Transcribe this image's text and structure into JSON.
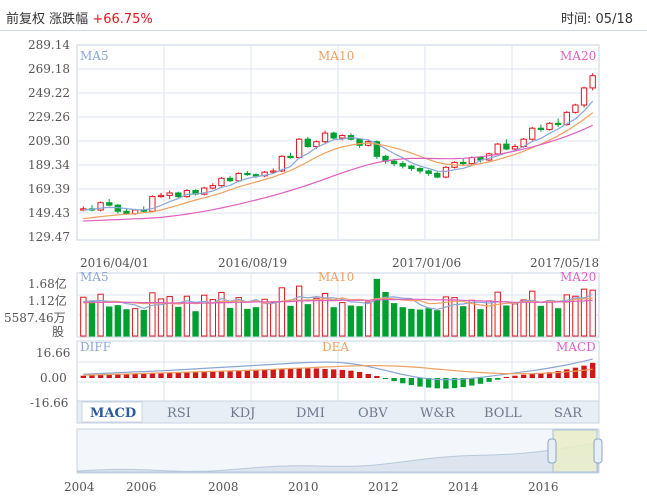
{
  "header": {
    "adjust_label": "前复权",
    "change_label": "涨跌幅",
    "change_value": "+66.75%",
    "time_label": "时间:",
    "time_value": "05/18"
  },
  "colors": {
    "up": "#e0171e",
    "down": "#00a030",
    "ma5": "#8aa6d6",
    "ma10": "#f0a060",
    "ma20": "#e060c0",
    "grid": "#dde6f0",
    "axis_text": "#555555"
  },
  "price_panel": {
    "ma_labels": [
      "MA5",
      "MA10",
      "MA20"
    ],
    "y_ticks": [
      "289.14",
      "269.18",
      "249.22",
      "229.26",
      "209.30",
      "189.34",
      "169.39",
      "149.43",
      "129.47"
    ],
    "x_labels": [
      "2016/04/01",
      "2016/08/19",
      "2017/01/06",
      "2017/05/18"
    ]
  },
  "volume_panel": {
    "ma_labels": [
      "MA5",
      "MA10",
      "MA20"
    ],
    "y_ticks": [
      "1.68亿",
      "1.12亿",
      "5587.46万",
      "股"
    ]
  },
  "macd_panel": {
    "labels": [
      "DIFF",
      "DEA",
      "MACD"
    ],
    "y_ticks": [
      "16.66",
      "0.00",
      "-16.66"
    ]
  },
  "tabs": [
    "MACD",
    "RSI",
    "KDJ",
    "DMI",
    "OBV",
    "W&R",
    "BOLL",
    "SAR"
  ],
  "active_tab": "MACD",
  "overview": {
    "years": [
      "2004",
      "2006",
      "2008",
      "2010",
      "2012",
      "2014",
      "2016"
    ]
  },
  "chart_data": [
    {
      "type": "candlestick",
      "ylim": [
        129.47,
        289.14
      ],
      "y_ticks": [
        289.14,
        269.18,
        249.22,
        229.26,
        209.3,
        189.34,
        169.39,
        149.43,
        129.47
      ],
      "x_labels": [
        "2016/04/01",
        "2016/08/19",
        "2017/01/06",
        "2017/05/18"
      ],
      "ohlc": [
        [
          154,
          157,
          153,
          155
        ],
        [
          155,
          158,
          153,
          154
        ],
        [
          154,
          161,
          153,
          160
        ],
        [
          160,
          163,
          157,
          158
        ],
        [
          158,
          159,
          151,
          153
        ],
        [
          153,
          155,
          150,
          151
        ],
        [
          151,
          155,
          150,
          154
        ],
        [
          154,
          157,
          152,
          153
        ],
        [
          153,
          166,
          152,
          165
        ],
        [
          165,
          168,
          164,
          166
        ],
        [
          166,
          170,
          163,
          168
        ],
        [
          168,
          169,
          164,
          165
        ],
        [
          165,
          171,
          164,
          170
        ],
        [
          170,
          171,
          166,
          167
        ],
        [
          167,
          173,
          166,
          172
        ],
        [
          172,
          176,
          171,
          174
        ],
        [
          174,
          181,
          173,
          180
        ],
        [
          180,
          182,
          177,
          178
        ],
        [
          178,
          185,
          177,
          184
        ],
        [
          184,
          186,
          182,
          183
        ],
        [
          183,
          184,
          180,
          182
        ],
        [
          182,
          186,
          181,
          185
        ],
        [
          185,
          188,
          184,
          186
        ],
        [
          186,
          199,
          185,
          198
        ],
        [
          198,
          201,
          196,
          197
        ],
        [
          197,
          213,
          196,
          212
        ],
        [
          212,
          214,
          205,
          206
        ],
        [
          206,
          211,
          204,
          210
        ],
        [
          210,
          219,
          209,
          217
        ],
        [
          217,
          218,
          212,
          213
        ],
        [
          213,
          216,
          211,
          215
        ],
        [
          215,
          217,
          211,
          212
        ],
        [
          212,
          213,
          205,
          207
        ],
        [
          207,
          212,
          206,
          210
        ],
        [
          210,
          211,
          196,
          198
        ],
        [
          198,
          199,
          192,
          194
        ],
        [
          194,
          196,
          190,
          192
        ],
        [
          192,
          194,
          188,
          190
        ],
        [
          190,
          191,
          186,
          188
        ],
        [
          188,
          189,
          184,
          186
        ],
        [
          186,
          187,
          182,
          184
        ],
        [
          184,
          186,
          180,
          181
        ],
        [
          181,
          190,
          180,
          189
        ],
        [
          189,
          194,
          188,
          193
        ],
        [
          193,
          196,
          190,
          192
        ],
        [
          192,
          198,
          191,
          197
        ],
        [
          197,
          198,
          193,
          195
        ],
        [
          195,
          201,
          194,
          200
        ],
        [
          200,
          209,
          199,
          208
        ],
        [
          208,
          212,
          203,
          204
        ],
        [
          204,
          208,
          202,
          206
        ],
        [
          206,
          213,
          205,
          212
        ],
        [
          212,
          222,
          211,
          221
        ],
        [
          221,
          224,
          218,
          220
        ],
        [
          220,
          226,
          219,
          225
        ],
        [
          225,
          229,
          222,
          224
        ],
        [
          224,
          235,
          223,
          234
        ],
        [
          234,
          241,
          233,
          240
        ],
        [
          240,
          255,
          238,
          254
        ],
        [
          254,
          266,
          252,
          264
        ]
      ],
      "ma5": [
        154,
        154.6,
        155.6,
        156.2,
        156,
        155.2,
        154.4,
        154.2,
        155.2,
        157.8,
        160.8,
        163.4,
        166.8,
        167.2,
        168,
        169.6,
        172.6,
        174.2,
        177.6,
        179.8,
        181.4,
        182.4,
        184,
        187,
        189.6,
        196.8,
        200.2,
        205.2,
        208.4,
        211.6,
        212.2,
        213.4,
        212.4,
        211.4,
        208.4,
        204.2,
        200.2,
        196.8,
        192.8,
        190,
        188,
        185.8,
        185.6,
        187,
        188.2,
        190.4,
        194.8,
        196.4,
        198.4,
        200.8,
        202.6,
        206,
        210.2,
        212.6,
        216.8,
        220.4,
        224.6,
        228.6,
        235.2,
        243.2
      ],
      "ma10": [
        147,
        147.8,
        148.6,
        149.4,
        150,
        150.6,
        151,
        151.8,
        152.6,
        154,
        156,
        158,
        160.2,
        162.2,
        164,
        166,
        168,
        170.6,
        173,
        175,
        177,
        179,
        181,
        183.6,
        186.4,
        189.8,
        193.4,
        197.4,
        200.8,
        203.6,
        205.8,
        207.2,
        208.4,
        208.8,
        208,
        206.8,
        205,
        203,
        200.6,
        198,
        195.4,
        193,
        191.6,
        191,
        190.6,
        190.8,
        192,
        193.4,
        195.2,
        197.4,
        199.6,
        202.2,
        205,
        208,
        211.2,
        214.8,
        219,
        223.4,
        228.2,
        233.8
      ],
      "ma20": [
        145,
        145.3,
        145.6,
        145.9,
        146.2,
        146.5,
        146.8,
        147.1,
        147.5,
        148,
        148.8,
        149.7,
        150.7,
        151.8,
        153,
        154.3,
        155.7,
        157.2,
        158.8,
        160.5,
        162.2,
        164,
        165.9,
        167.9,
        170,
        172.2,
        174.5,
        176.9,
        179.4,
        182,
        184.5,
        186.9,
        189.1,
        191.1,
        192.8,
        194.2,
        195.2,
        195.9,
        196.3,
        196.4,
        196.3,
        196.1,
        196,
        196.1,
        196.4,
        196.9,
        197.6,
        198.5,
        199.6,
        200.9,
        202.3,
        203.9,
        205.7,
        207.6,
        209.7,
        212,
        214.5,
        217.2,
        220.2,
        223.5
      ]
    },
    {
      "type": "bar",
      "y_ticks": [
        "1.68亿",
        "1.12亿",
        "5587.46万"
      ],
      "volume_wan": [
        11500,
        10200,
        12400,
        8600,
        9000,
        7800,
        8100,
        7600,
        12800,
        11000,
        11700,
        8500,
        11800,
        7200,
        12100,
        10800,
        12900,
        8200,
        11400,
        7900,
        8400,
        10900,
        9800,
        14300,
        8800,
        14800,
        9300,
        11200,
        12600,
        8400,
        9900,
        8900,
        8700,
        10100,
        16800,
        12900,
        9600,
        8400,
        7900,
        7700,
        8100,
        7500,
        11600,
        11400,
        8700,
        10600,
        7800,
        10400,
        13000,
        8900,
        9500,
        10700,
        13300,
        8800,
        10500,
        8100,
        12200,
        11800,
        13900,
        13600
      ],
      "ma5": [
        10200,
        10400,
        10500,
        10300,
        10300,
        9600,
        9200,
        8200,
        9100,
        9300,
        9800,
        9800,
        10400,
        10000,
        10300,
        9800,
        11100,
        10300,
        10900,
        10100,
        10800,
        9600,
        9700,
        10300,
        10500,
        11700,
        11300,
        11700,
        11300,
        11300,
        10900,
        10100,
        10000,
        9600,
        10900,
        11500,
        11600,
        11200,
        11100,
        9300,
        8300,
        7900,
        8600,
        9300,
        9500,
        10000,
        10000,
        9800,
        10100,
        10100,
        9500,
        10500,
        10600,
        10000,
        10600,
        10300,
        10600,
        11300,
        11300,
        12300
      ],
      "ma10": [
        9800,
        9900,
        10000,
        10100,
        10200,
        10000,
        9800,
        9600,
        9700,
        9800,
        9700,
        9500,
        9800,
        9600,
        9800,
        9800,
        10300,
        10200,
        10500,
        10000,
        10500,
        9700,
        10200,
        10300,
        10700,
        10600,
        10700,
        10700,
        11100,
        10700,
        11300,
        10700,
        10900,
        10500,
        11100,
        11200,
        11000,
        10700,
        10500,
        10500,
        9600,
        9700,
        10000,
        10300,
        10300,
        9600,
        9200,
        8900,
        9400,
        9700,
        9800,
        10200,
        10300,
        9900,
        10300,
        10200,
        10000,
        10900,
        11000,
        11200
      ],
      "ma20": [
        10000,
        10000,
        10000,
        10000,
        10000,
        10000,
        10000,
        9900,
        9900,
        9900,
        9800,
        9800,
        9800,
        9800,
        9800,
        9800,
        9900,
        9900,
        10000,
        10000,
        10100,
        10100,
        10100,
        10200,
        10200,
        10400,
        10400,
        10500,
        10500,
        10500,
        10600,
        10600,
        10600,
        10600,
        10700,
        10800,
        10800,
        10900,
        10900,
        10900,
        10800,
        10700,
        10700,
        10700,
        10600,
        10500,
        10400,
        10300,
        10200,
        10100,
        10000,
        10000,
        10000,
        10000,
        10000,
        10100,
        10200,
        10300,
        10400,
        10600
      ]
    },
    {
      "type": "bar",
      "ylim": [
        -16.66,
        16.66
      ],
      "y_ticks": [
        16.66,
        0.0,
        -16.66
      ],
      "macd": [
        1.8,
        2.2,
        2.6,
        3.0,
        3.2,
        3.4,
        3.6,
        3.8,
        4.0,
        4.2,
        4.4,
        4.6,
        4.8,
        5.0,
        5.2,
        5.4,
        5.6,
        5.8,
        6.0,
        6.2,
        6.4,
        6.6,
        6.8,
        7.0,
        7.2,
        7.6,
        7.8,
        7.6,
        7.2,
        6.8,
        6.4,
        5.8,
        4.8,
        3.2,
        1.6,
        -0.6,
        -2.4,
        -4.2,
        -5.6,
        -6.8,
        -7.6,
        -8.2,
        -8.4,
        -8.0,
        -7.2,
        -6.0,
        -4.6,
        -3.0,
        -1.4,
        0.8,
        1.8,
        2.6,
        3.2,
        3.8,
        4.6,
        5.6,
        6.8,
        8.2,
        9.8,
        12.0
      ],
      "diff": [
        3.0,
        3.3,
        3.6,
        3.9,
        4.2,
        4.5,
        4.8,
        5.1,
        5.4,
        5.7,
        6.0,
        6.4,
        6.8,
        7.2,
        7.6,
        8.0,
        8.4,
        8.8,
        9.2,
        9.6,
        10.0,
        10.4,
        10.8,
        11.2,
        11.6,
        12.0,
        12.3,
        12.5,
        12.6,
        12.5,
        12.1,
        11.4,
        10.4,
        9.1,
        7.6,
        6.0,
        4.4,
        2.8,
        1.4,
        0.2,
        -0.6,
        -1.2,
        -1.4,
        -1.2,
        -0.8,
        -0.2,
        0.5,
        1.3,
        2.2,
        3.1,
        4.0,
        4.9,
        5.8,
        6.8,
        7.9,
        9.1,
        10.4,
        11.8,
        13.3,
        15.0
      ],
      "dea": [
        2.2,
        2.4,
        2.6,
        2.8,
        3.0,
        3.2,
        3.4,
        3.6,
        3.8,
        4.0,
        4.2,
        4.4,
        4.6,
        4.8,
        5.0,
        5.2,
        5.4,
        5.6,
        5.8,
        6.0,
        6.3,
        6.6,
        6.9,
        7.2,
        7.5,
        7.8,
        8.1,
        8.4,
        8.7,
        9.0,
        9.3,
        9.5,
        9.7,
        9.8,
        9.8,
        9.7,
        9.5,
        9.2,
        8.8,
        8.3,
        7.7,
        7.1,
        6.5,
        5.9,
        5.3,
        4.8,
        4.4,
        4.0,
        3.7,
        3.5,
        3.4,
        3.4,
        3.5,
        3.7,
        4.0,
        4.4,
        4.9,
        5.5,
        6.2,
        7.0
      ]
    }
  ]
}
